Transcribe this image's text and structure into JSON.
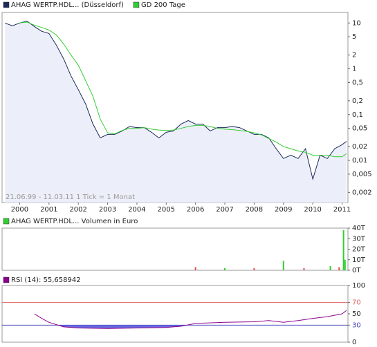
{
  "chart_data": [
    {
      "type": "line",
      "log_scale": true,
      "annotation": "21.06.99 - 11.03.11   1 Tick = 1 Monat",
      "xlim": [
        1999.4,
        2011.2
      ],
      "xticks": [
        2000,
        2001,
        2002,
        2003,
        2004,
        2005,
        2006,
        2007,
        2008,
        2009,
        2010,
        2011
      ],
      "ylim": [
        0.0012,
        17
      ],
      "yticks": [
        10,
        5,
        2,
        1,
        {
          "value": 0.5,
          "label": "0,5"
        },
        {
          "value": 0.2,
          "label": "0,2"
        },
        {
          "value": 0.1,
          "label": "0,1"
        },
        {
          "value": 0.05,
          "label": "0,05"
        },
        {
          "value": 0.02,
          "label": "0,02"
        },
        {
          "value": 0.01,
          "label": "0,01"
        },
        {
          "value": 0.005,
          "label": "0,005"
        },
        {
          "value": 0.002,
          "label": "0,002"
        }
      ],
      "x": [
        1999.5,
        1999.75,
        2000,
        2000.25,
        2000.5,
        2000.75,
        2001,
        2001.25,
        2001.5,
        2001.75,
        2002,
        2002.25,
        2002.5,
        2002.75,
        2003,
        2003.25,
        2003.5,
        2003.75,
        2004,
        2004.25,
        2004.5,
        2004.75,
        2005,
        2005.25,
        2005.5,
        2005.75,
        2006,
        2006.25,
        2006.5,
        2006.75,
        2007,
        2007.25,
        2007.5,
        2007.75,
        2008,
        2008.25,
        2008.5,
        2008.75,
        2009,
        2009.25,
        2009.5,
        2009.75,
        2010,
        2010.25,
        2010.5,
        2010.75,
        2011,
        2011.15
      ],
      "series": [
        {
          "name": "AHAG WERTP.HDL... (Düsseldorf)",
          "color": "#1a2a5a",
          "fill": "#eceff9",
          "values": [
            10,
            8.7,
            10,
            11,
            8.4,
            6.6,
            5.9,
            3.3,
            1.65,
            0.7,
            0.35,
            0.17,
            0.062,
            0.031,
            0.037,
            0.037,
            0.044,
            0.055,
            0.052,
            0.052,
            0.041,
            0.031,
            0.041,
            0.044,
            0.062,
            0.074,
            0.062,
            0.062,
            0.044,
            0.052,
            0.052,
            0.055,
            0.052,
            0.044,
            0.037,
            0.037,
            0.031,
            0.018,
            0.011,
            0.013,
            0.011,
            0.018,
            0.0039,
            0.013,
            0.011,
            0.018,
            0.022,
            0.026
          ]
        },
        {
          "name": "GD 200 Tage",
          "color": "#33cc33",
          "values": [
            null,
            null,
            10,
            10.5,
            9,
            8,
            7,
            5.5,
            3.5,
            2,
            1.2,
            0.55,
            0.25,
            0.08,
            0.04,
            0.038,
            0.045,
            0.05,
            0.05,
            0.052,
            0.048,
            0.046,
            0.045,
            0.046,
            0.05,
            0.055,
            0.058,
            0.058,
            0.055,
            0.05,
            0.048,
            0.047,
            0.045,
            0.043,
            0.04,
            0.036,
            0.03,
            0.025,
            0.02,
            0.018,
            0.016,
            0.015,
            0.013,
            0.013,
            0.013,
            0.012,
            0.012,
            0.014
          ]
        }
      ]
    },
    {
      "type": "bar",
      "xlim": [
        1999.4,
        2011.2
      ],
      "ylim": [
        0,
        40000
      ],
      "yticks": [
        {
          "value": 40000,
          "label": "40T"
        },
        {
          "value": 30000,
          "label": "30T"
        },
        {
          "value": 20000,
          "label": "20T"
        },
        {
          "value": 10000,
          "label": "10T"
        },
        {
          "value": 0,
          "label": "0T"
        }
      ],
      "x": [
        2006.0,
        2007.0,
        2008.0,
        2009.0,
        2009.7,
        2010.6,
        2010.9,
        2011.05,
        2011.1
      ],
      "series": [
        {
          "name": "AHAG WERTP.HDL... Volumen in Euro",
          "color": "#33cc33",
          "values": [
            3000,
            2000,
            2000,
            9000,
            2000,
            4000,
            3000,
            38000,
            10000
          ],
          "colors": [
            "#e05050",
            "#33cc33",
            "#e05050",
            "#33cc33",
            "#e05050",
            "#33cc33",
            "#e05050",
            "#33cc33",
            "#33cc33"
          ]
        }
      ]
    },
    {
      "type": "line",
      "xlim": [
        1999.4,
        2011.2
      ],
      "ylim": [
        0,
        100
      ],
      "yticks": [
        100,
        {
          "value": 70,
          "label": "70",
          "color": "#e06060"
        },
        50,
        {
          "value": 30,
          "label": "30",
          "color": "#4040c0"
        },
        0
      ],
      "reference_lines": [
        {
          "value": 70,
          "color": "#e06060"
        },
        {
          "value": 30,
          "color": "#4040c0"
        }
      ],
      "fill_below": {
        "value": 30,
        "color": "#6a6ae0"
      },
      "x": [
        2000.5,
        2000.75,
        2001,
        2001.5,
        2002,
        2003,
        2004,
        2005,
        2005.5,
        2006,
        2007,
        2008,
        2008.5,
        2009,
        2009.5,
        2010,
        2010.5,
        2011,
        2011.15
      ],
      "series": [
        {
          "name": "RSI (14): 55,658942",
          "color": "#8b008b",
          "values": [
            50,
            42,
            35,
            27,
            25,
            24,
            25,
            26,
            28,
            33,
            35,
            36,
            38,
            35,
            38,
            42,
            45,
            50,
            56
          ]
        }
      ]
    }
  ]
}
